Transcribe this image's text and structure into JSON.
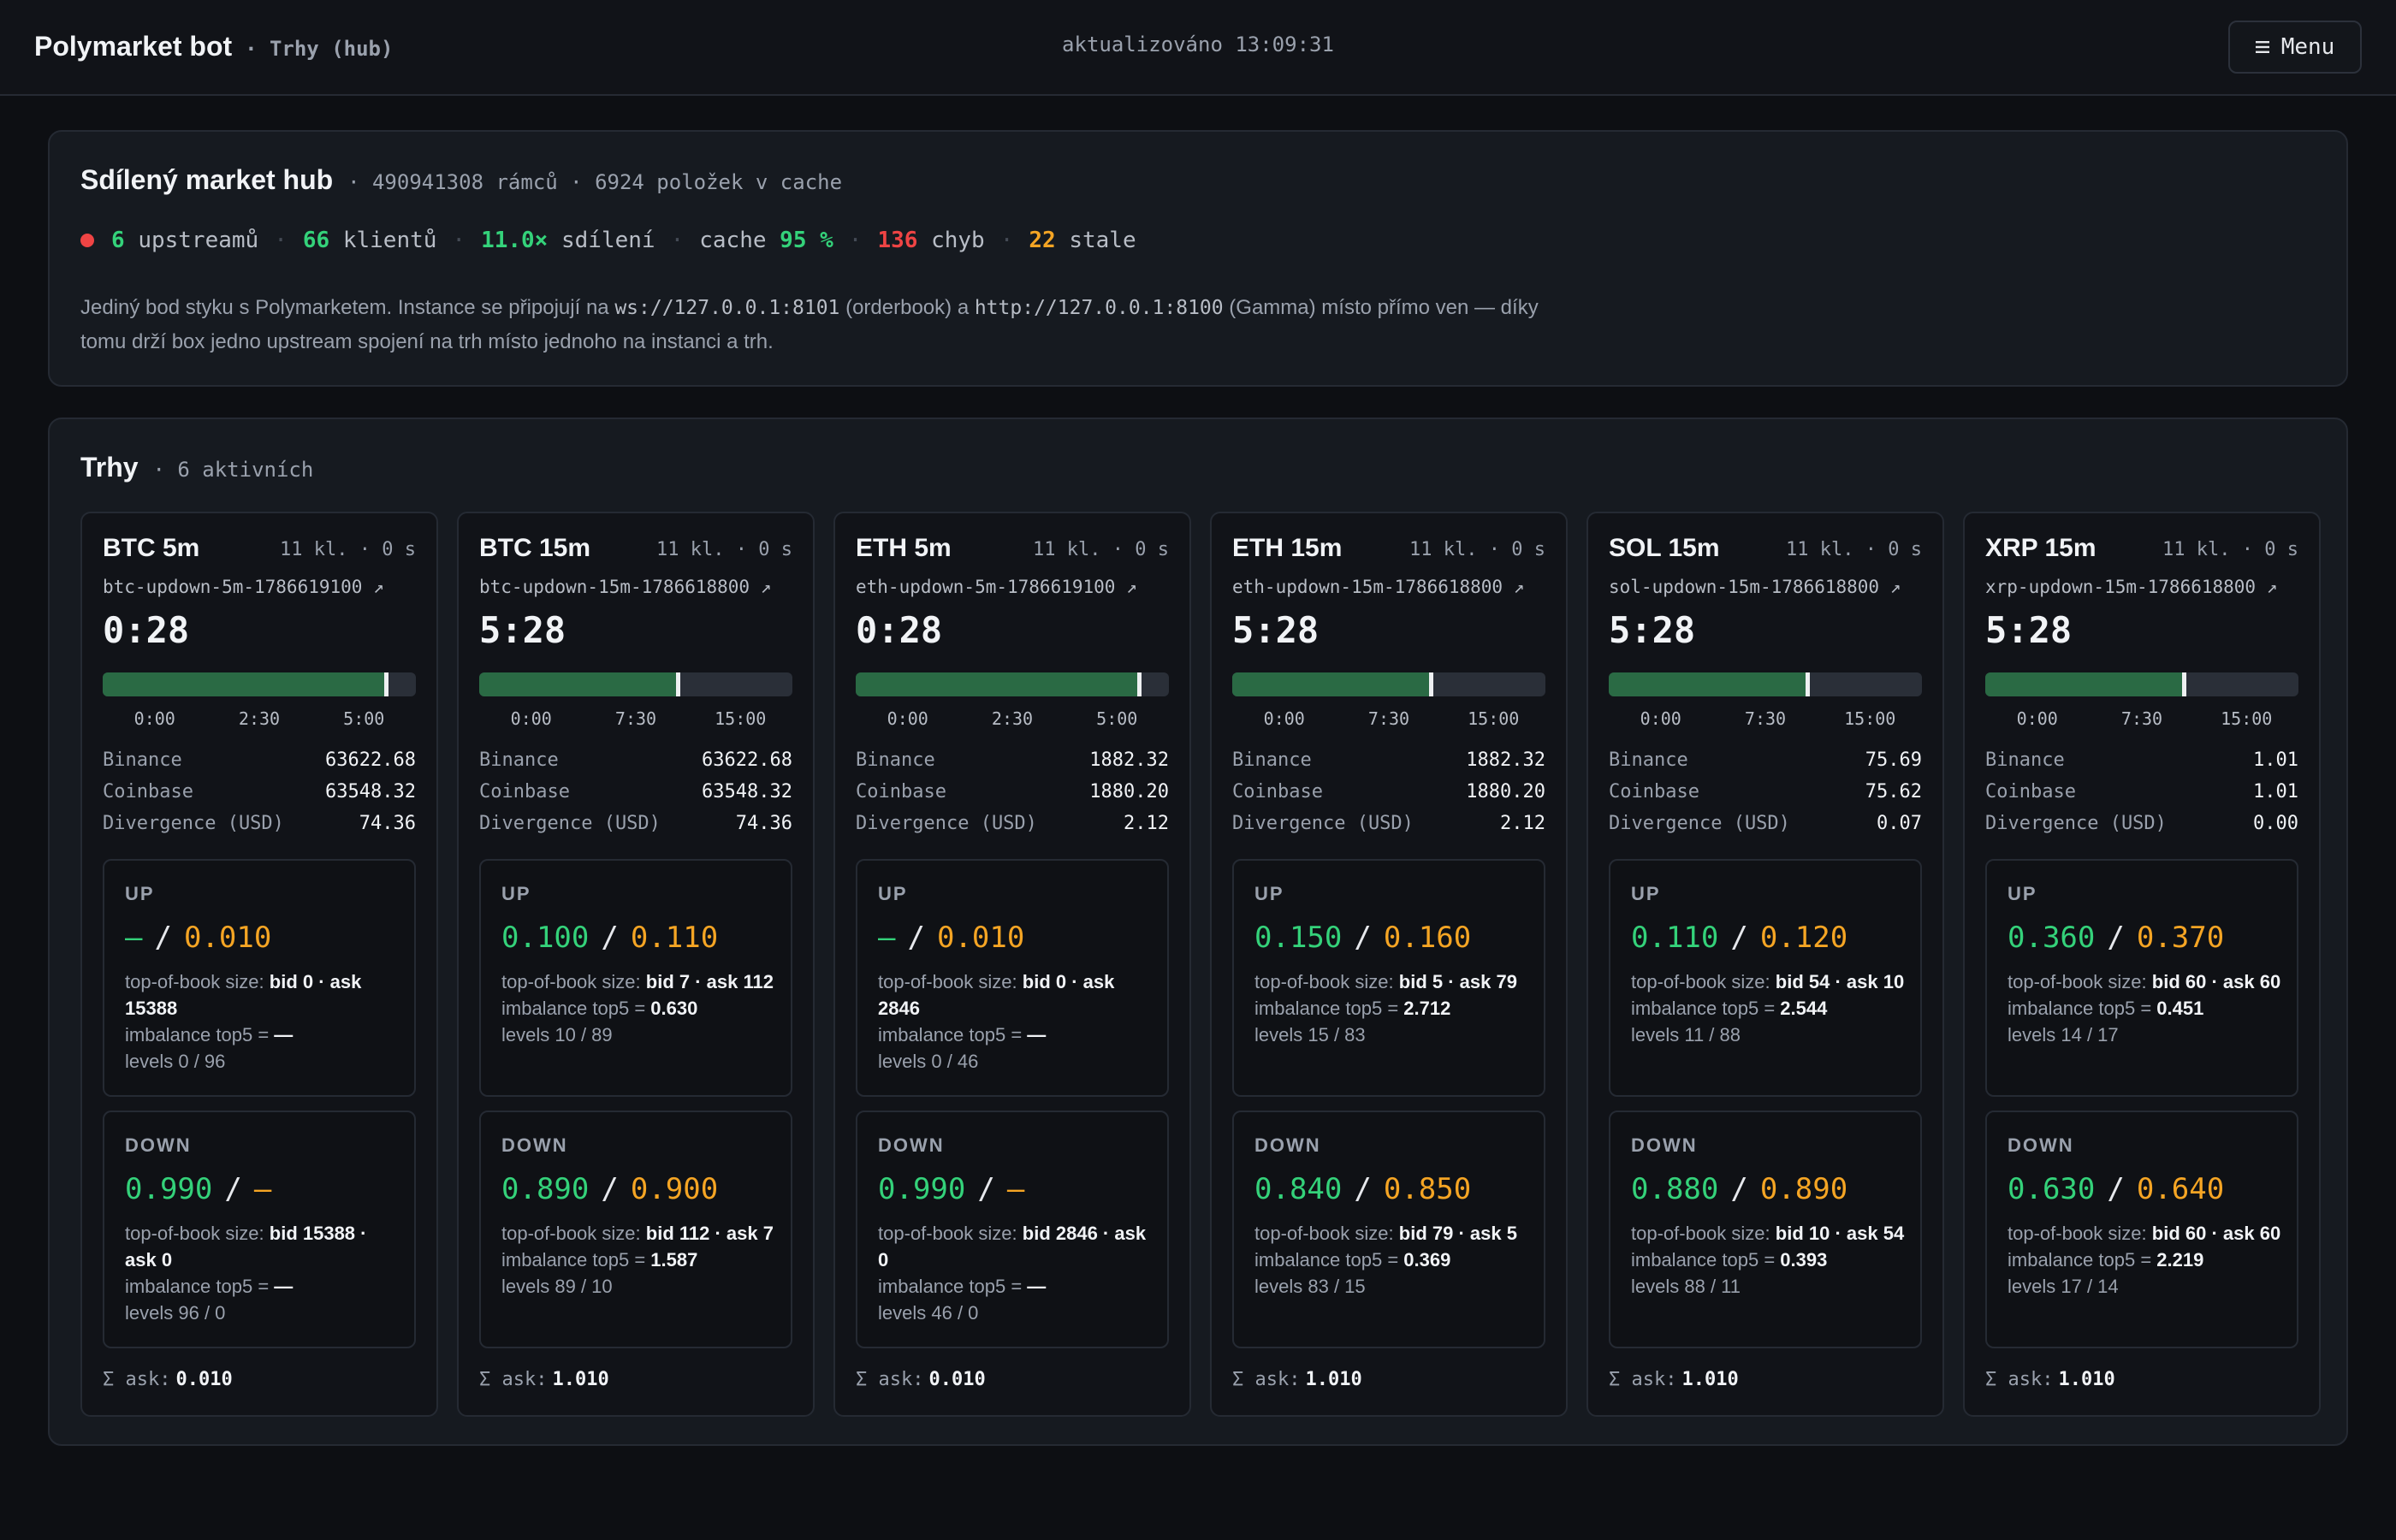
{
  "header": {
    "title": "Polymarket bot",
    "subtitle": "· Trhy (hub)",
    "updated": "aktualizováno 13:09:31",
    "menu_label": "Menu",
    "menu_icon": "hamburger-icon"
  },
  "hub": {
    "title": "Sdílený market hub",
    "meta": "· 490941308 rámců · 6924 položek v cache",
    "stats": {
      "upstreams_value": "6",
      "upstreams_label": "upstreamů",
      "clients_value": "66",
      "clients_label": "klientů",
      "sharing_value": "11.0×",
      "sharing_label": "sdílení",
      "cache_label": "cache",
      "cache_value": "95 %",
      "errors_value": "136",
      "errors_label": "chyb",
      "stale_value": "22",
      "stale_label": "stale"
    },
    "desc": {
      "p1": "Jediný bod styku s Polymarketem. Instance se připojují na ",
      "ws_url": "ws://127.0.0.1:8101",
      "p2": " (orderbook) a ",
      "http_url": "http://127.0.0.1:8100",
      "p3": " (Gamma) místo přímo ven — díky tomu drží box jedno upstream spojení na trh místo jednoho na instanci a trh."
    }
  },
  "markets": {
    "title": "Trhy",
    "meta": "· 6 aktivních",
    "items": [
      {
        "name": "BTC 5m",
        "meta": "11 kl. · 0 s",
        "slug": "btc-updown-5m-1786619100 ↗",
        "timer": "0:28",
        "progress": 0.907,
        "ticks": [
          "0:00",
          "2:30",
          "5:00"
        ],
        "binance_label": "Binance",
        "binance": "63622.68",
        "coinbase_label": "Coinbase",
        "coinbase": "63548.32",
        "divergence_label": "Divergence (USD)",
        "divergence": "74.36",
        "up": {
          "label": "UP",
          "bid": "—",
          "ask": "0.010",
          "size_label": "top-of-book size:",
          "size": "bid 0 · ask 15388",
          "imb_label": "imbalance top5 =",
          "imb": "—",
          "levels": "levels 0 / 96"
        },
        "down": {
          "label": "DOWN",
          "bid": "0.990",
          "ask": "—",
          "size_label": "top-of-book size:",
          "size": "bid 15388 · ask 0",
          "imb_label": "imbalance top5 =",
          "imb": "—",
          "levels": "levels 96 / 0"
        },
        "sum_label": "Σ ask:",
        "sum": "0.010"
      },
      {
        "name": "BTC 15m",
        "meta": "11 kl. · 0 s",
        "slug": "btc-updown-15m-1786618800 ↗",
        "timer": "5:28",
        "progress": 0.636,
        "ticks": [
          "0:00",
          "7:30",
          "15:00"
        ],
        "binance_label": "Binance",
        "binance": "63622.68",
        "coinbase_label": "Coinbase",
        "coinbase": "63548.32",
        "divergence_label": "Divergence (USD)",
        "divergence": "74.36",
        "up": {
          "label": "UP",
          "bid": "0.100",
          "ask": "0.110",
          "size_label": "top-of-book size:",
          "size": "bid 7 · ask 112",
          "imb_label": "imbalance top5 =",
          "imb": "0.630",
          "levels": "levels 10 / 89"
        },
        "down": {
          "label": "DOWN",
          "bid": "0.890",
          "ask": "0.900",
          "size_label": "top-of-book size:",
          "size": "bid 112 · ask 7",
          "imb_label": "imbalance top5 =",
          "imb": "1.587",
          "levels": "levels 89 / 10"
        },
        "sum_label": "Σ ask:",
        "sum": "1.010"
      },
      {
        "name": "ETH 5m",
        "meta": "11 kl. · 0 s",
        "slug": "eth-updown-5m-1786619100 ↗",
        "timer": "0:28",
        "progress": 0.907,
        "ticks": [
          "0:00",
          "2:30",
          "5:00"
        ],
        "binance_label": "Binance",
        "binance": "1882.32",
        "coinbase_label": "Coinbase",
        "coinbase": "1880.20",
        "divergence_label": "Divergence (USD)",
        "divergence": "2.12",
        "up": {
          "label": "UP",
          "bid": "—",
          "ask": "0.010",
          "size_label": "top-of-book size:",
          "size": "bid 0 · ask 2846",
          "imb_label": "imbalance top5 =",
          "imb": "—",
          "levels": "levels 0 / 46"
        },
        "down": {
          "label": "DOWN",
          "bid": "0.990",
          "ask": "—",
          "size_label": "top-of-book size:",
          "size": "bid 2846 · ask 0",
          "imb_label": "imbalance top5 =",
          "imb": "—",
          "levels": "levels 46 / 0"
        },
        "sum_label": "Σ ask:",
        "sum": "0.010"
      },
      {
        "name": "ETH 15m",
        "meta": "11 kl. · 0 s",
        "slug": "eth-updown-15m-1786618800 ↗",
        "timer": "5:28",
        "progress": 0.636,
        "ticks": [
          "0:00",
          "7:30",
          "15:00"
        ],
        "binance_label": "Binance",
        "binance": "1882.32",
        "coinbase_label": "Coinbase",
        "coinbase": "1880.20",
        "divergence_label": "Divergence (USD)",
        "divergence": "2.12",
        "up": {
          "label": "UP",
          "bid": "0.150",
          "ask": "0.160",
          "size_label": "top-of-book size:",
          "size": "bid 5 · ask 79",
          "imb_label": "imbalance top5 =",
          "imb": "2.712",
          "levels": "levels 15 / 83"
        },
        "down": {
          "label": "DOWN",
          "bid": "0.840",
          "ask": "0.850",
          "size_label": "top-of-book size:",
          "size": "bid 79 · ask 5",
          "imb_label": "imbalance top5 =",
          "imb": "0.369",
          "levels": "levels 83 / 15"
        },
        "sum_label": "Σ ask:",
        "sum": "1.010"
      },
      {
        "name": "SOL 15m",
        "meta": "11 kl. · 0 s",
        "slug": "sol-updown-15m-1786618800 ↗",
        "timer": "5:28",
        "progress": 0.636,
        "ticks": [
          "0:00",
          "7:30",
          "15:00"
        ],
        "binance_label": "Binance",
        "binance": "75.69",
        "coinbase_label": "Coinbase",
        "coinbase": "75.62",
        "divergence_label": "Divergence (USD)",
        "divergence": "0.07",
        "up": {
          "label": "UP",
          "bid": "0.110",
          "ask": "0.120",
          "size_label": "top-of-book size:",
          "size": "bid 54 · ask 10",
          "imb_label": "imbalance top5 =",
          "imb": "2.544",
          "levels": "levels 11 / 88"
        },
        "down": {
          "label": "DOWN",
          "bid": "0.880",
          "ask": "0.890",
          "size_label": "top-of-book size:",
          "size": "bid 10 · ask 54",
          "imb_label": "imbalance top5 =",
          "imb": "0.393",
          "levels": "levels 88 / 11"
        },
        "sum_label": "Σ ask:",
        "sum": "1.010"
      },
      {
        "name": "XRP 15m",
        "meta": "11 kl. · 0 s",
        "slug": "xrp-updown-15m-1786618800 ↗",
        "timer": "5:28",
        "progress": 0.636,
        "ticks": [
          "0:00",
          "7:30",
          "15:00"
        ],
        "binance_label": "Binance",
        "binance": "1.01",
        "coinbase_label": "Coinbase",
        "coinbase": "1.01",
        "divergence_label": "Divergence (USD)",
        "divergence": "0.00",
        "up": {
          "label": "UP",
          "bid": "0.360",
          "ask": "0.370",
          "size_label": "top-of-book size:",
          "size": "bid 60 · ask 60",
          "imb_label": "imbalance top5 =",
          "imb": "0.451",
          "levels": "levels 14 / 17"
        },
        "down": {
          "label": "DOWN",
          "bid": "0.630",
          "ask": "0.640",
          "size_label": "top-of-book size:",
          "size": "bid 60 · ask 60",
          "imb_label": "imbalance top5 =",
          "imb": "2.219",
          "levels": "levels 17 / 14"
        },
        "sum_label": "Σ ask:",
        "sum": "1.010"
      }
    ]
  }
}
